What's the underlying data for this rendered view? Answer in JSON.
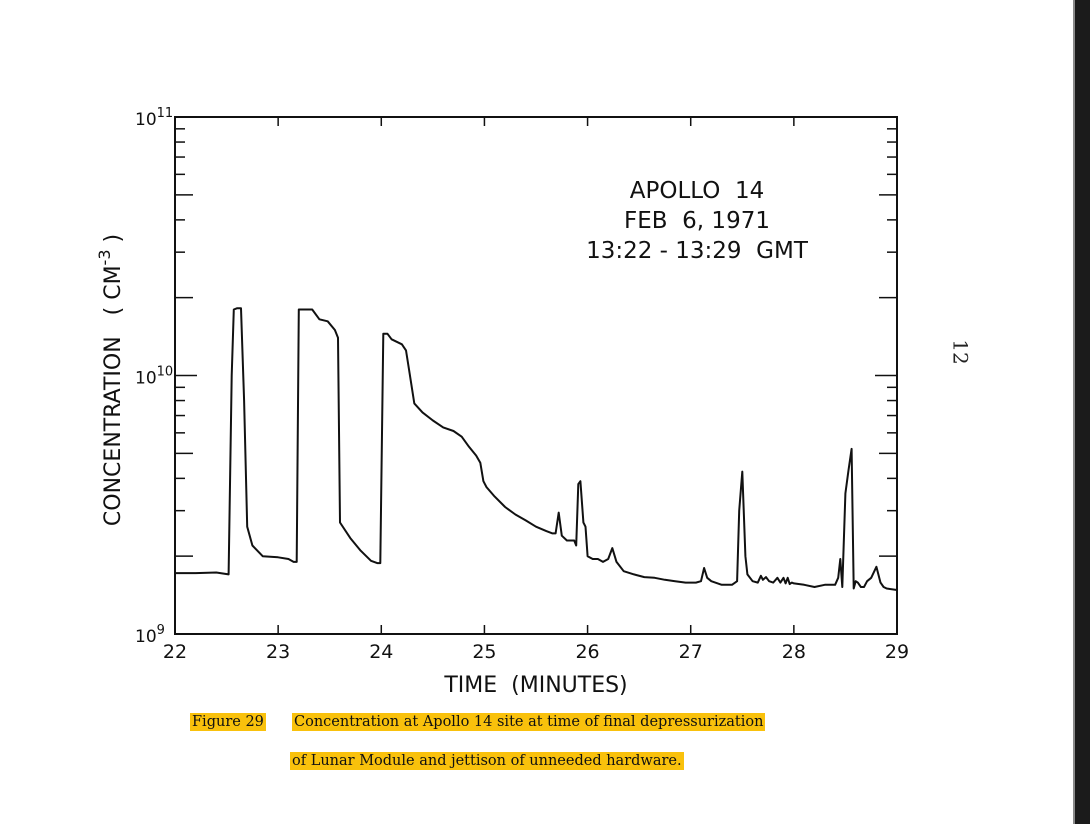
{
  "page": {
    "page_number": "12"
  },
  "caption": {
    "label": "Figure 29",
    "line1": "Concentration at Apollo 14 site at time of final depressurization",
    "line2": "of Lunar Module and jettison of unneeded hardware."
  },
  "chart_data": {
    "type": "line",
    "annotation": [
      "APOLLO  14",
      "FEB  6, 1971",
      "13:22 - 13:29  GMT"
    ],
    "xlabel": "TIME  (MINUTES)",
    "ylabel": "CONCENTRATION   ( CM",
    "ylabel_exponent": "-3",
    "ylabel_close": " )",
    "x_ticks": [
      "22",
      "23",
      "24",
      "25",
      "26",
      "27",
      "28",
      "29"
    ],
    "y_ticks": [
      {
        "base": "10",
        "exp": "9",
        "value": 1000000000.0
      },
      {
        "base": "10",
        "exp": "10",
        "value": 10000000000.0
      },
      {
        "base": "10",
        "exp": "11",
        "value": 100000000000.0
      }
    ],
    "xlim": [
      22,
      29
    ],
    "ylim": [
      1000000000.0,
      100000000000.0
    ],
    "yscale": "log",
    "grid": false,
    "series": [
      {
        "x": [
          22.0,
          22.2,
          22.4,
          22.52,
          22.55,
          22.57,
          22.6,
          22.64,
          22.67,
          22.7,
          22.75,
          22.85,
          23.0,
          23.1,
          23.15,
          23.18,
          23.2,
          23.28,
          23.33,
          23.4,
          23.48,
          23.55,
          23.58,
          23.6,
          23.7,
          23.8,
          23.9,
          23.96,
          23.99,
          24.02,
          24.06,
          24.1,
          24.2,
          24.24,
          24.27,
          24.32,
          24.4,
          24.5,
          24.6,
          24.7,
          24.78,
          24.85,
          24.92,
          24.96,
          24.99,
          25.02,
          25.1,
          25.2,
          25.3,
          25.4,
          25.5,
          25.6,
          25.66,
          25.69,
          25.72,
          25.75,
          25.8,
          25.87,
          25.89,
          25.91,
          25.93,
          25.96,
          25.98,
          26.0,
          26.05,
          26.1,
          26.15,
          26.2,
          26.24,
          26.28,
          26.35,
          26.45,
          26.55,
          26.65,
          26.75,
          26.85,
          26.95,
          27.05,
          27.1,
          27.13,
          27.16,
          27.2,
          27.3,
          27.4,
          27.45,
          27.47,
          27.5,
          27.53,
          27.55,
          27.6,
          27.65,
          27.68,
          27.7,
          27.73,
          27.76,
          27.8,
          27.84,
          27.87,
          27.9,
          27.92,
          27.94,
          27.96,
          27.98,
          28.0,
          28.1,
          28.2,
          28.3,
          28.4,
          28.43,
          28.45,
          28.47,
          28.5,
          28.53,
          28.56,
          28.58,
          28.6,
          28.62,
          28.65,
          28.68,
          28.71,
          28.75,
          28.8,
          28.84,
          28.87,
          28.9,
          29.0
        ],
        "y": [
          1720000000.0,
          1720000000.0,
          1730000000.0,
          1700000000.0,
          10000000000.0,
          18000000000.0,
          18200000000.0,
          18200000000.0,
          8000000000.0,
          2600000000.0,
          2200000000.0,
          2000000000.0,
          1980000000.0,
          1950000000.0,
          1900000000.0,
          1900000000.0,
          18000000000.0,
          18000000000.0,
          18000000000.0,
          16500000000.0,
          16200000000.0,
          15000000000.0,
          14000000000.0,
          2700000000.0,
          2350000000.0,
          2100000000.0,
          1920000000.0,
          1880000000.0,
          1880000000.0,
          14500000000.0,
          14500000000.0,
          13800000000.0,
          13200000000.0,
          12500000000.0,
          10500000000.0,
          7800000000.0,
          7200000000.0,
          6700000000.0,
          6300000000.0,
          6100000000.0,
          5800000000.0,
          5300000000.0,
          4900000000.0,
          4600000000.0,
          3900000000.0,
          3700000000.0,
          3400000000.0,
          3100000000.0,
          2900000000.0,
          2750000000.0,
          2600000000.0,
          2500000000.0,
          2450000000.0,
          2450000000.0,
          2950000000.0,
          2400000000.0,
          2300000000.0,
          2300000000.0,
          2200000000.0,
          3800000000.0,
          3900000000.0,
          2700000000.0,
          2600000000.0,
          2000000000.0,
          1950000000.0,
          1950000000.0,
          1900000000.0,
          1950000000.0,
          2150000000.0,
          1900000000.0,
          1750000000.0,
          1700000000.0,
          1660000000.0,
          1650000000.0,
          1620000000.0,
          1600000000.0,
          1580000000.0,
          1580000000.0,
          1600000000.0,
          1800000000.0,
          1650000000.0,
          1600000000.0,
          1550000000.0,
          1550000000.0,
          1600000000.0,
          3000000000.0,
          4250000000.0,
          2000000000.0,
          1700000000.0,
          1600000000.0,
          1580000000.0,
          1680000000.0,
          1620000000.0,
          1660000000.0,
          1600000000.0,
          1580000000.0,
          1650000000.0,
          1580000000.0,
          1650000000.0,
          1570000000.0,
          1650000000.0,
          1560000000.0,
          1580000000.0,
          1570000000.0,
          1550000000.0,
          1520000000.0,
          1550000000.0,
          1550000000.0,
          1650000000.0,
          1950000000.0,
          1520000000.0,
          3500000000.0,
          4300000000.0,
          5200000000.0,
          1500000000.0,
          1600000000.0,
          1580000000.0,
          1520000000.0,
          1520000000.0,
          1600000000.0,
          1650000000.0,
          1820000000.0,
          1580000000.0,
          1520000000.0,
          1500000000.0,
          1480000000.0
        ]
      }
    ]
  }
}
